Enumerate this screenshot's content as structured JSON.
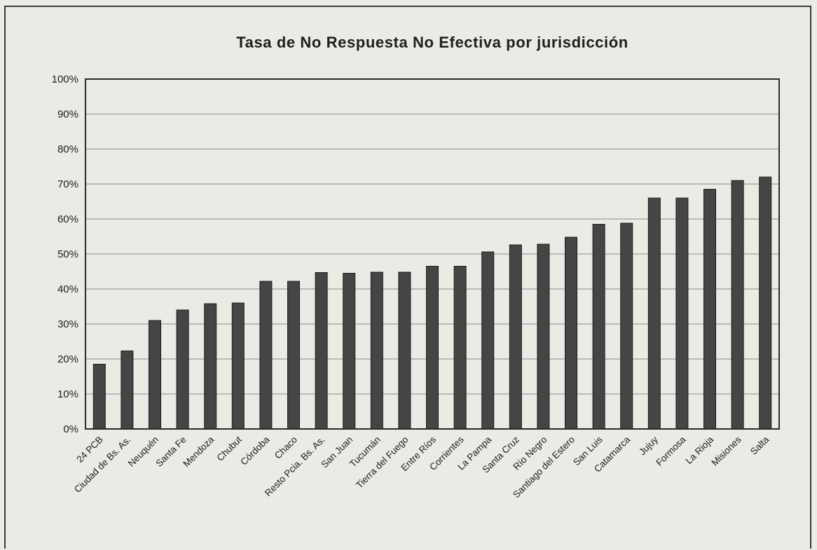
{
  "chart_data": {
    "type": "bar",
    "title": "Tasa de No Respuesta No Efectiva por jurisdicción",
    "xlabel": "",
    "ylabel": "",
    "ylim": [
      0,
      100
    ],
    "y_unit": "%",
    "y_ticks": [
      "0%",
      "10%",
      "20%",
      "30%",
      "40%",
      "50%",
      "60%",
      "70%",
      "80%",
      "90%",
      "100%"
    ],
    "grid": true,
    "bar_color": "#454545",
    "categories": [
      "24 PCB",
      "Ciudad de Bs. As.",
      "Neuquén",
      "Santa Fe",
      "Mendoza",
      "Chubut",
      "Córdoba",
      "Chaco",
      "Resto Pcia. Bs. As.",
      "San Juan",
      "Tucumán",
      "Tierra del Fuego",
      "Entre Ríos",
      "Corrientes",
      "La Pampa",
      "Santa Cruz",
      "Río Negro",
      "Santiago del Estero",
      "San Luis",
      "Catamarca",
      "Jujuy",
      "Formosa",
      "La Rioja",
      "Misiones",
      "Salta"
    ],
    "values": [
      18.5,
      22.3,
      31,
      34,
      35.8,
      36,
      42.2,
      42.2,
      44.7,
      44.5,
      44.8,
      44.8,
      46.5,
      46.5,
      50.6,
      52.6,
      52.8,
      54.8,
      58.5,
      58.8,
      66,
      66,
      68.5,
      71,
      72
    ]
  }
}
